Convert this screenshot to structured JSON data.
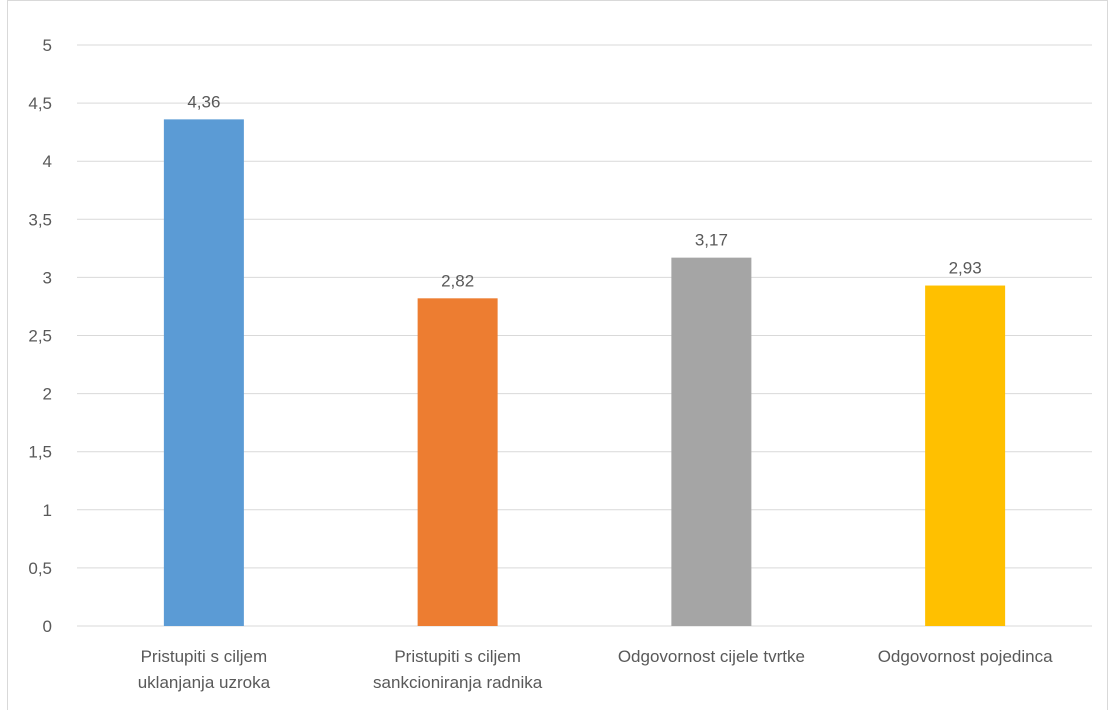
{
  "chart_data": {
    "type": "bar",
    "categories": [
      [
        "Pristupiti s ciljem",
        "uklanjanja uzroka"
      ],
      [
        "Pristupiti s ciljem",
        "sankcioniranja radnika"
      ],
      [
        "Odgovornost cijele tvrtke"
      ],
      [
        "Odgovornost pojedinca"
      ]
    ],
    "values": [
      4.36,
      2.82,
      3.17,
      2.93
    ],
    "value_labels": [
      "4,36",
      "2,82",
      "3,17",
      "2,93"
    ],
    "bar_colors": [
      "#5B9BD5",
      "#ED7D31",
      "#A5A5A5",
      "#FFC000"
    ],
    "y_ticks": [
      0,
      0.5,
      1,
      1.5,
      2,
      2.5,
      3,
      3.5,
      4,
      4.5,
      5
    ],
    "y_tick_labels": [
      "0",
      "0,5",
      "1",
      "1,5",
      "2",
      "2,5",
      "3",
      "3,5",
      "4",
      "4,5",
      "5"
    ],
    "ylim": [
      0,
      5
    ],
    "grid": true,
    "gridline_color": "#d9d9d9",
    "title": "",
    "xlabel": "",
    "ylabel": "",
    "legend": "none"
  }
}
